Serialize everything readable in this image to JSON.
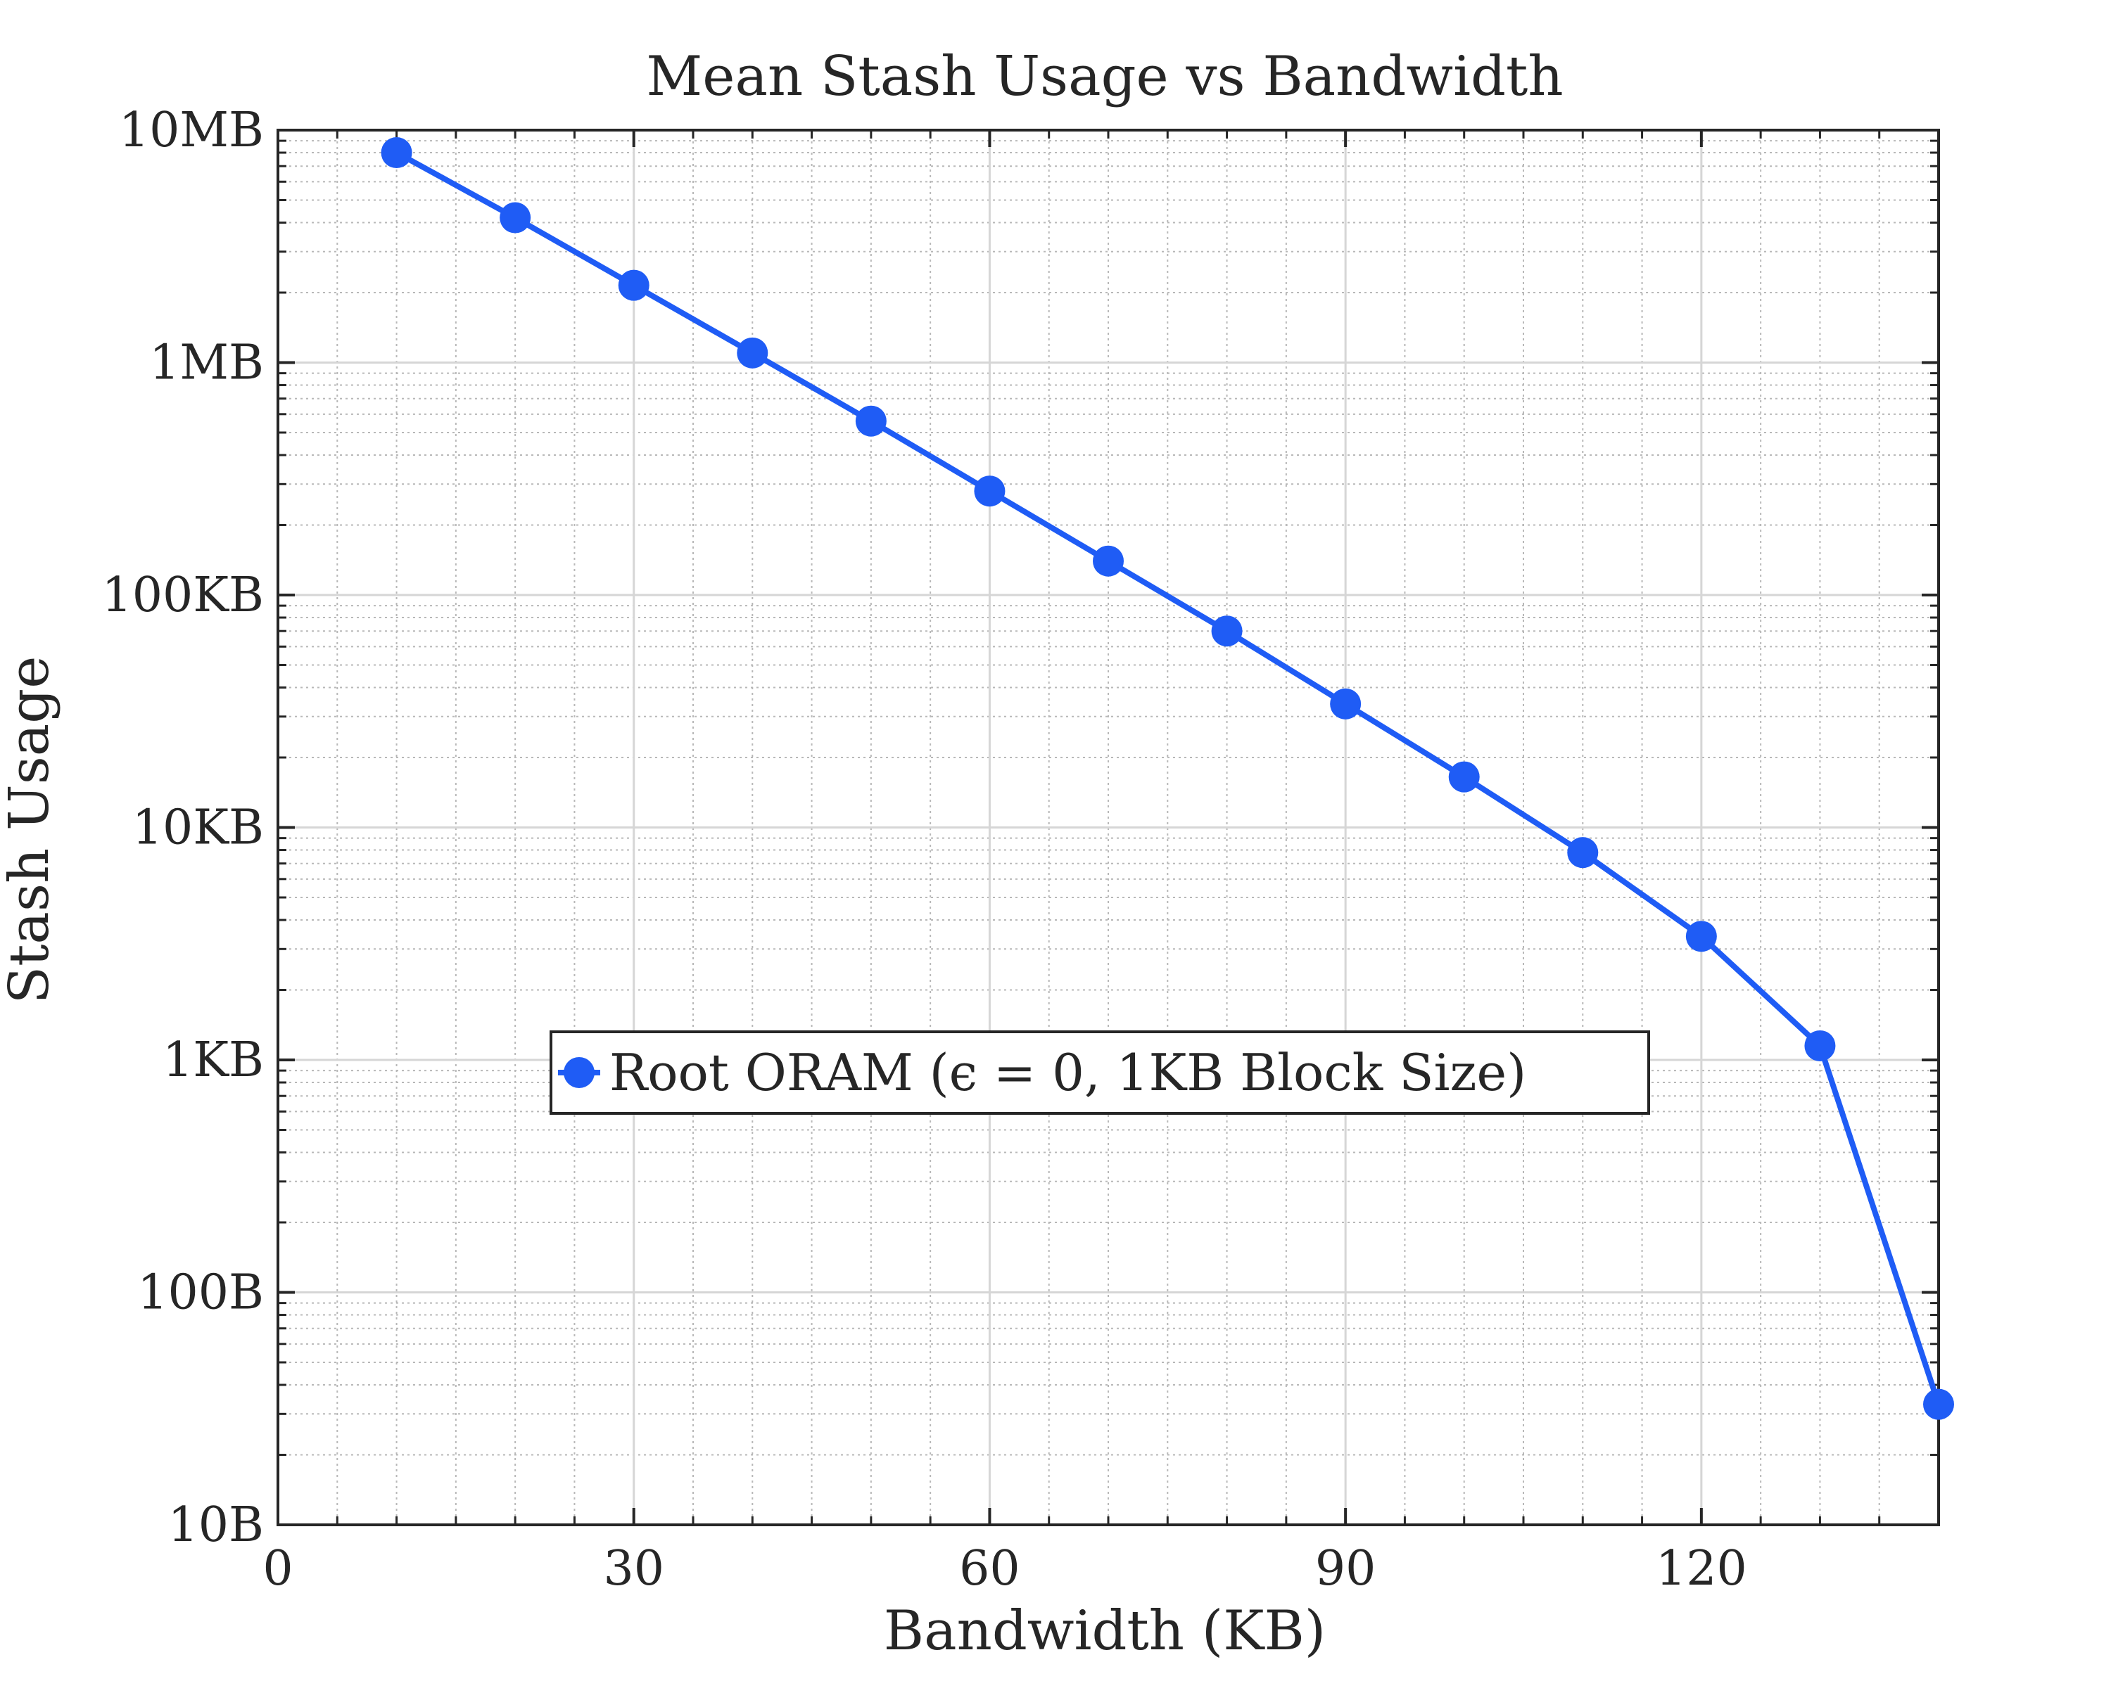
{
  "chart_data": {
    "type": "line",
    "title": "Mean Stash Usage vs Bandwidth",
    "xlabel": "Bandwidth (KB)",
    "ylabel": "Stash Usage",
    "xlim": [
      0,
      140
    ],
    "ylim": [
      10,
      10000000
    ],
    "yscale": "log",
    "grid": true,
    "minor_grid": true,
    "legend_position": "center-left",
    "x_ticks": [
      {
        "value": 0,
        "label": "0"
      },
      {
        "value": 30,
        "label": "30"
      },
      {
        "value": 60,
        "label": "60"
      },
      {
        "value": 90,
        "label": "90"
      },
      {
        "value": 120,
        "label": "120"
      }
    ],
    "y_ticks": [
      {
        "value": 10,
        "label": "10B"
      },
      {
        "value": 100,
        "label": "100B"
      },
      {
        "value": 1000,
        "label": "1KB"
      },
      {
        "value": 10000,
        "label": "10KB"
      },
      {
        "value": 100000,
        "label": "100KB"
      },
      {
        "value": 1000000,
        "label": "1MB"
      },
      {
        "value": 10000000,
        "label": "10MB"
      }
    ],
    "series": [
      {
        "name": "Root ORAM (ϵ = 0, 1KB Block Size)",
        "color": "#1f5cf5",
        "marker": "circle",
        "x": [
          10,
          20,
          30,
          40,
          50,
          60,
          70,
          80,
          90,
          100,
          110,
          120,
          130,
          140
        ],
        "y": [
          8000000,
          4200000,
          2150000,
          1100000,
          560000,
          280000,
          140000,
          70000,
          34000,
          16500,
          7800,
          3400,
          1150,
          33
        ]
      }
    ]
  }
}
